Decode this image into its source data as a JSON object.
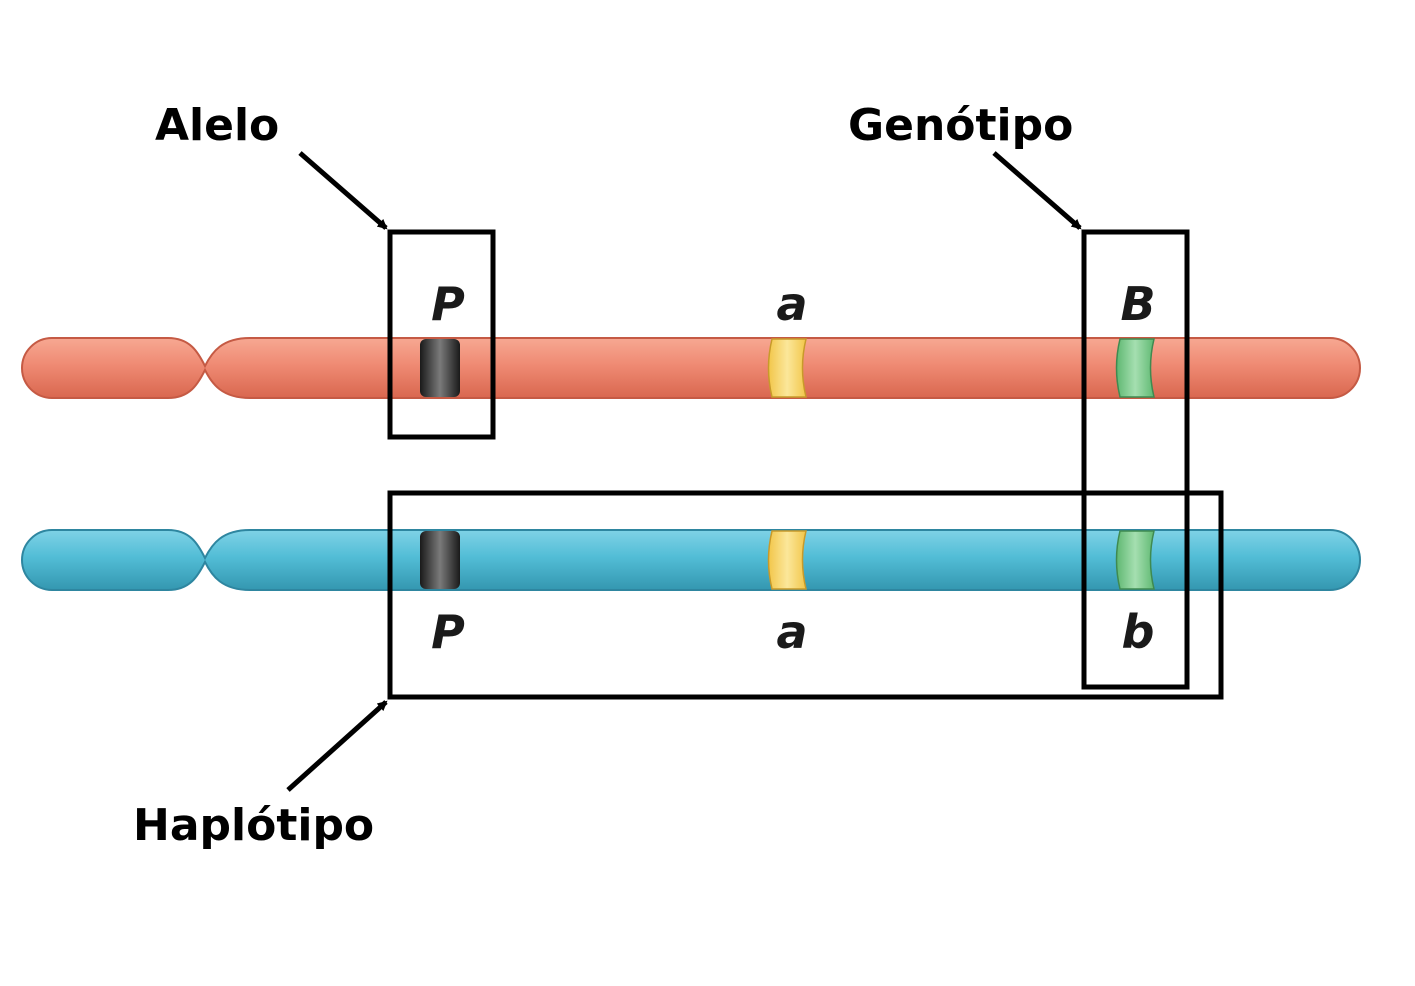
{
  "labels": {
    "allele": "Alelo",
    "genotype": "Genótipo",
    "haplotype": "Haplótipo"
  },
  "chromosomes": {
    "top": {
      "color": "#ef8a73",
      "alleles": [
        "P",
        "a",
        "B"
      ]
    },
    "bottom": {
      "color": "#52bdd6",
      "alleles": [
        "P",
        "a",
        "b"
      ]
    }
  },
  "band_colors": {
    "locus1": "#3a3a3a",
    "locus2": "#f7d56a",
    "locus3": "#7cc98a"
  }
}
